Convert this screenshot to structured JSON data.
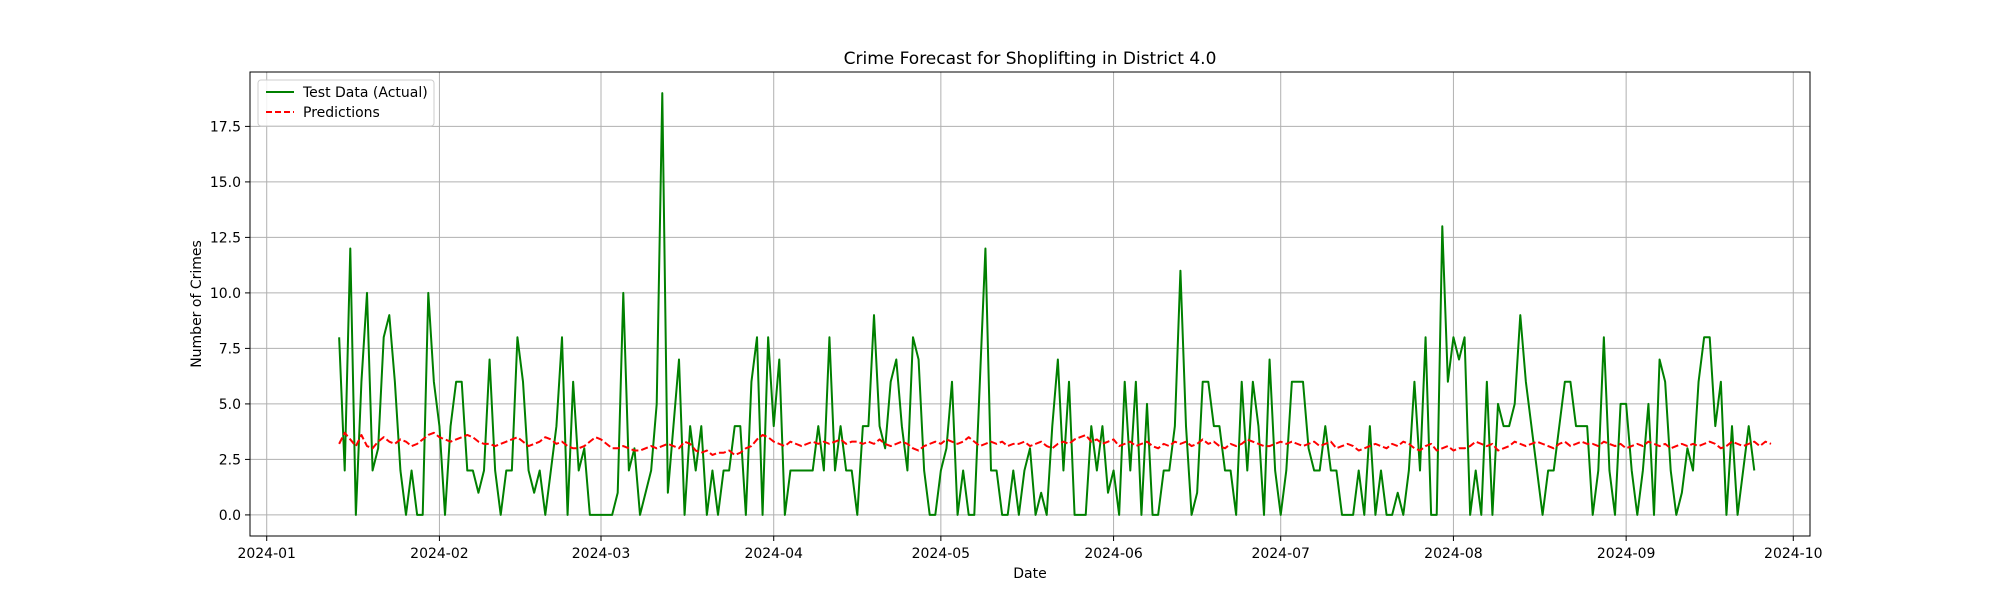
{
  "chart_data": {
    "type": "line",
    "title": "Crime Forecast for Shoplifting in District 4.0",
    "xlabel": "Date",
    "ylabel": "Number of Crimes",
    "x_range": [
      "2023-12-29",
      "2024-10-04"
    ],
    "ylim": [
      -0.95,
      19.95
    ],
    "x_ticks": [
      "2024-01",
      "2024-02",
      "2024-03",
      "2024-04",
      "2024-05",
      "2024-06",
      "2024-07",
      "2024-08",
      "2024-09",
      "2024-10"
    ],
    "y_ticks": [
      "0.0",
      "2.5",
      "5.0",
      "7.5",
      "10.0",
      "12.5",
      "15.0",
      "17.5"
    ],
    "grid": true,
    "legend_position": "top-left",
    "series": [
      {
        "name": "Test Data (Actual)",
        "color": "#008000",
        "style": "solid",
        "start_date": "2024-01-14",
        "values": [
          8,
          2,
          12,
          0,
          6,
          10,
          2,
          3,
          8,
          9,
          6,
          2,
          0,
          2,
          0,
          0,
          10,
          6,
          4,
          0,
          4,
          6,
          6,
          2,
          2,
          1,
          2,
          7,
          2,
          0,
          2,
          2,
          8,
          6,
          2,
          1,
          2,
          0,
          2,
          4,
          8,
          0,
          6,
          2,
          3,
          0,
          0,
          0,
          0,
          0,
          1,
          10,
          2,
          3,
          0,
          1,
          2,
          5,
          19,
          1,
          4,
          7,
          0,
          4,
          2,
          4,
          0,
          2,
          0,
          2,
          2,
          4,
          4,
          0,
          6,
          8,
          0,
          8,
          4,
          7,
          0,
          2,
          2,
          2,
          2,
          2,
          4,
          2,
          8,
          2,
          4,
          2,
          2,
          0,
          4,
          4,
          9,
          4,
          3,
          6,
          7,
          4,
          2,
          8,
          7,
          2,
          0,
          0,
          2,
          3,
          6,
          0,
          2,
          0,
          0,
          6,
          12,
          2,
          2,
          0,
          0,
          2,
          0,
          2,
          3,
          0,
          1,
          0,
          4,
          7,
          2,
          6,
          0,
          0,
          0,
          4,
          2,
          4,
          1,
          2,
          0,
          6,
          2,
          6,
          0,
          5,
          0,
          0,
          2,
          2,
          4,
          11,
          4,
          0,
          1,
          6,
          6,
          4,
          4,
          2,
          2,
          0,
          6,
          2,
          6,
          4,
          0,
          7,
          2,
          0,
          2,
          6,
          6,
          6,
          3,
          2,
          2,
          4,
          2,
          2,
          0,
          0,
          0,
          2,
          0,
          4,
          0,
          2,
          0,
          0,
          1,
          0,
          2,
          6,
          2,
          8,
          0,
          0,
          13,
          6,
          8,
          7,
          8,
          0,
          2,
          0,
          6,
          0,
          5,
          4,
          4,
          5,
          9,
          6,
          4,
          2,
          0,
          2,
          2,
          4,
          6,
          6,
          4,
          4,
          4,
          0,
          2,
          8,
          2,
          0,
          5,
          5,
          2,
          0,
          2,
          5,
          0,
          7,
          6,
          2,
          0,
          1,
          3,
          2,
          6,
          8,
          8,
          4,
          6,
          0,
          4,
          0,
          2,
          4,
          2
        ]
      },
      {
        "name": "Predictions",
        "color": "#ff0000",
        "style": "dashed",
        "start_date": "2024-01-14",
        "values": [
          3.2,
          3.7,
          3.4,
          3.1,
          3.6,
          3.1,
          3.0,
          3.3,
          3.5,
          3.3,
          3.2,
          3.4,
          3.3,
          3.1,
          3.2,
          3.4,
          3.6,
          3.7,
          3.5,
          3.4,
          3.3,
          3.4,
          3.5,
          3.6,
          3.5,
          3.3,
          3.2,
          3.2,
          3.1,
          3.2,
          3.3,
          3.4,
          3.5,
          3.3,
          3.1,
          3.2,
          3.3,
          3.5,
          3.4,
          3.2,
          3.3,
          3.1,
          3.0,
          3.0,
          3.1,
          3.3,
          3.5,
          3.4,
          3.2,
          3.0,
          3.0,
          3.1,
          3.0,
          2.9,
          2.9,
          3.0,
          3.1,
          3.0,
          3.1,
          3.2,
          3.1,
          3.0,
          3.3,
          3.2,
          2.9,
          2.8,
          2.9,
          2.7,
          2.8,
          2.8,
          2.9,
          2.7,
          2.8,
          3.0,
          3.1,
          3.4,
          3.6,
          3.5,
          3.3,
          3.2,
          3.1,
          3.3,
          3.2,
          3.1,
          3.2,
          3.3,
          3.2,
          3.3,
          3.2,
          3.3,
          3.4,
          3.2,
          3.3,
          3.3,
          3.2,
          3.3,
          3.2,
          3.4,
          3.2,
          3.1,
          3.2,
          3.3,
          3.2,
          3.0,
          2.9,
          3.1,
          3.2,
          3.3,
          3.2,
          3.4,
          3.3,
          3.2,
          3.3,
          3.5,
          3.3,
          3.1,
          3.2,
          3.3,
          3.2,
          3.3,
          3.1,
          3.2,
          3.2,
          3.3,
          3.1,
          3.2,
          3.3,
          3.1,
          3.0,
          3.2,
          3.3,
          3.2,
          3.4,
          3.5,
          3.6,
          3.3,
          3.4,
          3.2,
          3.3,
          3.4,
          3.1,
          3.2,
          3.3,
          3.1,
          3.2,
          3.3,
          3.1,
          3.0,
          3.2,
          3.1,
          3.3,
          3.2,
          3.3,
          3.1,
          3.2,
          3.4,
          3.2,
          3.3,
          3.1,
          3.0,
          3.2,
          3.1,
          3.2,
          3.4,
          3.3,
          3.2,
          3.1,
          3.1,
          3.2,
          3.3,
          3.2,
          3.3,
          3.2,
          3.1,
          3.2,
          3.3,
          3.1,
          3.2,
          3.3,
          3.0,
          3.1,
          3.2,
          3.1,
          2.9,
          3.0,
          3.1,
          3.2,
          3.1,
          3.0,
          3.2,
          3.1,
          3.3,
          3.2,
          3.0,
          2.9,
          3.1,
          3.2,
          2.9,
          3.0,
          3.1,
          2.9,
          3.0,
          3.0,
          3.1,
          3.3,
          3.2,
          3.1,
          3.2,
          2.9,
          3.0,
          3.1,
          3.3,
          3.2,
          3.1,
          3.2,
          3.3,
          3.2,
          3.1,
          3.0,
          3.2,
          3.3,
          3.1,
          3.2,
          3.3,
          3.2,
          3.2,
          3.1,
          3.3,
          3.2,
          3.1,
          3.2,
          3.0,
          3.1,
          3.2,
          3.1,
          3.3,
          3.2,
          3.1,
          3.2,
          3.0,
          3.1,
          3.2,
          3.1,
          3.2,
          3.1,
          3.2,
          3.3,
          3.2,
          3.0,
          3.1,
          3.3,
          3.2,
          3.1,
          3.2,
          3.3,
          3.1,
          3.3,
          3.2
        ]
      }
    ]
  }
}
